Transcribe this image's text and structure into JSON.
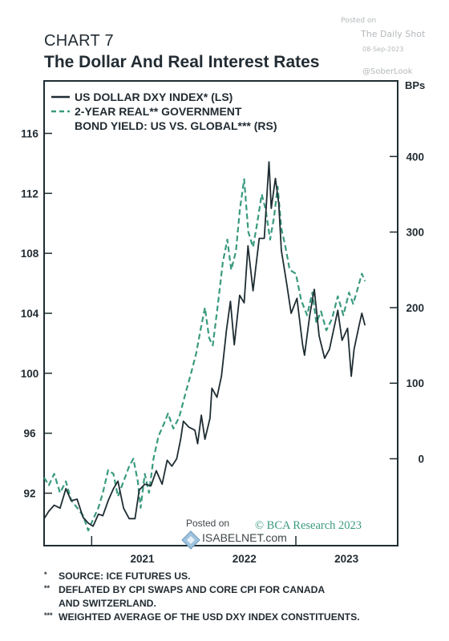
{
  "header": {
    "chart_label": "CHART 7",
    "title": "The Dollar And Real Interest Rates"
  },
  "watermark": {
    "posted_on": "Posted on",
    "site": "The Daily Shot",
    "date": "08-Sep-2023",
    "handle": "@SoberLook",
    "isabelnet_posted": "Posted on",
    "isabelnet_site": "ISABELNET.com"
  },
  "credit": "© BCA Research 2023",
  "right_axis_unit": "BPs",
  "colors": {
    "dxy": "#1f2d33",
    "yield": "#3a9a7f",
    "frame": "#1f2d33",
    "watermark": "#b4b9bb"
  },
  "footnotes": [
    {
      "mark": "*",
      "lines": [
        "SOURCE: ICE FUTURES US."
      ]
    },
    {
      "mark": "**",
      "lines": [
        "DEFLATED BY CPI SWAPS AND CORE CPI FOR CANADA",
        "AND SWITZERLAND."
      ]
    },
    {
      "mark": "***",
      "lines": [
        "WEIGHTED AVERAGE OF THE USD DXY INDEX CONSTITUENTS."
      ]
    }
  ],
  "chart_data": {
    "type": "line",
    "x_ticks": [
      "2021",
      "2022",
      "2023"
    ],
    "legend": {
      "placement": "top-left"
    },
    "left_axis": {
      "ticks": [
        92,
        96,
        100,
        104,
        108,
        112,
        116
      ],
      "range": [
        88.5,
        119.5
      ]
    },
    "right_axis": {
      "ticks": [
        0,
        100,
        200,
        300,
        400
      ],
      "range": [
        -115,
        500
      ],
      "unit": "BPs"
    },
    "x_range": [
      "2020-07-15",
      "2023-12-31"
    ],
    "series": [
      {
        "name": "US DOLLAR DXY INDEX* (LS)",
        "axis": "left",
        "style": "solid",
        "points": [
          [
            "2020-07-15",
            90.3
          ],
          [
            "2020-08-01",
            90.8
          ],
          [
            "2020-08-20",
            91.2
          ],
          [
            "2020-09-10",
            91.0
          ],
          [
            "2020-10-01",
            92.3
          ],
          [
            "2020-10-20",
            91.5
          ],
          [
            "2020-11-10",
            91.6
          ],
          [
            "2020-12-01",
            90.4
          ],
          [
            "2020-12-20",
            90.0
          ],
          [
            "2021-01-06",
            89.8
          ],
          [
            "2021-01-25",
            90.6
          ],
          [
            "2021-02-10",
            90.5
          ],
          [
            "2021-03-01",
            91.5
          ],
          [
            "2021-03-20",
            92.3
          ],
          [
            "2021-04-05",
            92.8
          ],
          [
            "2021-04-25",
            91.0
          ],
          [
            "2021-05-15",
            90.3
          ],
          [
            "2021-06-05",
            90.3
          ],
          [
            "2021-06-20",
            92.2
          ],
          [
            "2021-07-10",
            92.6
          ],
          [
            "2021-08-01",
            92.5
          ],
          [
            "2021-08-20",
            93.5
          ],
          [
            "2021-09-10",
            92.6
          ],
          [
            "2021-09-28",
            94.2
          ],
          [
            "2021-10-15",
            93.8
          ],
          [
            "2021-11-01",
            94.3
          ],
          [
            "2021-11-15",
            95.6
          ],
          [
            "2021-11-25",
            96.8
          ],
          [
            "2021-12-15",
            96.4
          ],
          [
            "2022-01-05",
            96.2
          ],
          [
            "2022-01-15",
            95.3
          ],
          [
            "2022-01-28",
            97.2
          ],
          [
            "2022-02-10",
            95.6
          ],
          [
            "2022-02-28",
            97.0
          ],
          [
            "2022-03-07",
            99.0
          ],
          [
            "2022-03-25",
            98.4
          ],
          [
            "2022-04-10",
            99.8
          ],
          [
            "2022-04-28",
            102.9
          ],
          [
            "2022-05-12",
            104.8
          ],
          [
            "2022-05-26",
            101.9
          ],
          [
            "2022-06-14",
            105.2
          ],
          [
            "2022-06-30",
            104.7
          ],
          [
            "2022-07-14",
            108.5
          ],
          [
            "2022-08-01",
            105.5
          ],
          [
            "2022-08-23",
            109.0
          ],
          [
            "2022-09-10",
            109.0
          ],
          [
            "2022-09-27",
            114.1
          ],
          [
            "2022-10-05",
            111.0
          ],
          [
            "2022-10-20",
            113.0
          ],
          [
            "2022-11-01",
            111.3
          ],
          [
            "2022-11-10",
            108.2
          ],
          [
            "2022-11-30",
            105.9
          ],
          [
            "2022-12-15",
            104.0
          ],
          [
            "2023-01-05",
            105.0
          ],
          [
            "2023-01-25",
            101.9
          ],
          [
            "2023-02-01",
            101.2
          ],
          [
            "2023-02-20",
            103.9
          ],
          [
            "2023-03-08",
            105.6
          ],
          [
            "2023-03-25",
            102.5
          ],
          [
            "2023-04-14",
            101.0
          ],
          [
            "2023-05-01",
            101.6
          ],
          [
            "2023-05-31",
            104.2
          ],
          [
            "2023-06-15",
            102.2
          ],
          [
            "2023-07-05",
            103.0
          ],
          [
            "2023-07-18",
            99.8
          ],
          [
            "2023-07-28",
            101.6
          ],
          [
            "2023-08-15",
            103.2
          ],
          [
            "2023-08-25",
            104.0
          ],
          [
            "2023-09-05",
            103.2
          ]
        ]
      },
      {
        "name": "2-YEAR REAL** GOVERNMENT BOND YIELD: US VS. GLOBAL*** (RS)",
        "axis": "right",
        "style": "dashed",
        "points": [
          [
            "2020-07-15",
            -25
          ],
          [
            "2020-08-01",
            -35
          ],
          [
            "2020-08-20",
            -20
          ],
          [
            "2020-09-10",
            -45
          ],
          [
            "2020-10-01",
            -30
          ],
          [
            "2020-10-20",
            -55
          ],
          [
            "2020-11-10",
            -65
          ],
          [
            "2020-12-01",
            -75
          ],
          [
            "2020-12-20",
            -95
          ],
          [
            "2021-01-06",
            -80
          ],
          [
            "2021-01-25",
            -65
          ],
          [
            "2021-02-10",
            -45
          ],
          [
            "2021-03-01",
            -15
          ],
          [
            "2021-03-20",
            -20
          ],
          [
            "2021-04-05",
            -50
          ],
          [
            "2021-04-25",
            -30
          ],
          [
            "2021-05-15",
            -10
          ],
          [
            "2021-05-30",
            0
          ],
          [
            "2021-06-15",
            -30
          ],
          [
            "2021-06-25",
            -65
          ],
          [
            "2021-07-10",
            -20
          ],
          [
            "2021-07-25",
            -45
          ],
          [
            "2021-08-10",
            0
          ],
          [
            "2021-08-28",
            30
          ],
          [
            "2021-09-15",
            45
          ],
          [
            "2021-10-01",
            60
          ],
          [
            "2021-10-20",
            40
          ],
          [
            "2021-11-10",
            55
          ],
          [
            "2021-12-05",
            90
          ],
          [
            "2021-12-20",
            110
          ],
          [
            "2022-01-10",
            140
          ],
          [
            "2022-01-25",
            170
          ],
          [
            "2022-02-10",
            200
          ],
          [
            "2022-02-25",
            160
          ],
          [
            "2022-03-10",
            150
          ],
          [
            "2022-03-30",
            210
          ],
          [
            "2022-04-15",
            260
          ],
          [
            "2022-05-01",
            290
          ],
          [
            "2022-05-15",
            250
          ],
          [
            "2022-06-01",
            275
          ],
          [
            "2022-06-15",
            330
          ],
          [
            "2022-06-30",
            370
          ],
          [
            "2022-07-15",
            300
          ],
          [
            "2022-08-01",
            280
          ],
          [
            "2022-08-15",
            310
          ],
          [
            "2022-09-01",
            350
          ],
          [
            "2022-09-15",
            330
          ],
          [
            "2022-10-01",
            290
          ],
          [
            "2022-10-15",
            320
          ],
          [
            "2022-10-28",
            360
          ],
          [
            "2022-11-10",
            305
          ],
          [
            "2022-11-25",
            280
          ],
          [
            "2022-12-10",
            250
          ],
          [
            "2023-01-01",
            245
          ],
          [
            "2023-01-20",
            210
          ],
          [
            "2023-02-10",
            190
          ],
          [
            "2023-03-01",
            220
          ],
          [
            "2023-03-15",
            180
          ],
          [
            "2023-04-01",
            195
          ],
          [
            "2023-04-20",
            170
          ],
          [
            "2023-05-10",
            185
          ],
          [
            "2023-05-31",
            215
          ],
          [
            "2023-06-20",
            190
          ],
          [
            "2023-07-10",
            220
          ],
          [
            "2023-07-25",
            205
          ],
          [
            "2023-08-10",
            225
          ],
          [
            "2023-08-25",
            245
          ],
          [
            "2023-09-05",
            235
          ]
        ]
      }
    ]
  }
}
